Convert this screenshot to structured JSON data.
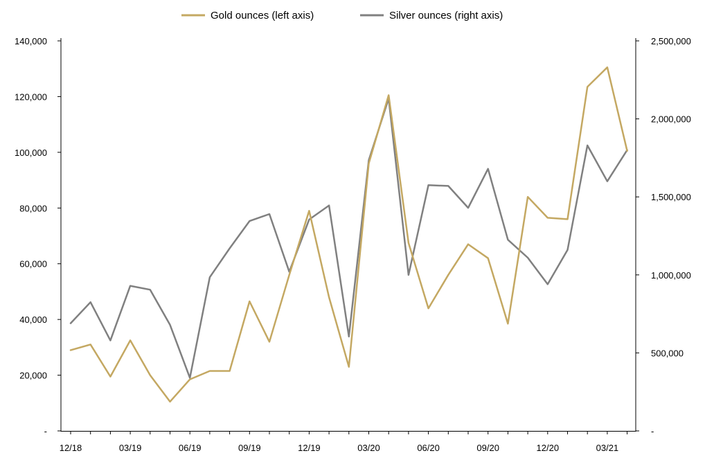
{
  "chart_data": {
    "type": "line",
    "x_tick_labels": [
      "12/18",
      "03/19",
      "06/19",
      "09/19",
      "12/19",
      "03/20",
      "06/20",
      "09/20",
      "12/20",
      "03/21"
    ],
    "x": [
      "12/18",
      "01/19",
      "02/19",
      "03/19",
      "04/19",
      "05/19",
      "06/19",
      "07/19",
      "08/19",
      "09/19",
      "10/19",
      "11/19",
      "12/19",
      "01/20",
      "02/20",
      "03/20",
      "04/20",
      "05/20",
      "06/20",
      "07/20",
      "08/20",
      "09/20",
      "10/20",
      "11/20",
      "12/20",
      "01/21",
      "02/21",
      "03/21",
      "04/21"
    ],
    "series": [
      {
        "name": "Gold ounces (left axis)",
        "axis": "left",
        "color": "#c4a862",
        "values": [
          29000,
          31000,
          19500,
          32500,
          20000,
          10500,
          18500,
          21500,
          21500,
          46500,
          32000,
          56000,
          79000,
          48000,
          23000,
          96000,
          120500,
          67500,
          44000,
          56000,
          67000,
          62000,
          38500,
          84000,
          76500,
          76000,
          123500,
          130500,
          100500
        ]
      },
      {
        "name": "Silver ounces (right axis)",
        "axis": "right",
        "color": "#808080",
        "values": [
          690000,
          825000,
          580000,
          930000,
          905000,
          680000,
          340000,
          985000,
          1170000,
          1345000,
          1390000,
          1020000,
          1355000,
          1445000,
          605000,
          1735000,
          2130000,
          1000000,
          1575000,
          1570000,
          1430000,
          1680000,
          1225000,
          1110000,
          940000,
          1160000,
          1830000,
          1600000,
          1800000
        ]
      }
    ],
    "y_left": {
      "ticks": [
        "-",
        "20,000",
        "40,000",
        "60,000",
        "80,000",
        "100,000",
        "120,000",
        "140,000"
      ],
      "ylim": [
        0,
        140000
      ]
    },
    "y_right": {
      "ticks": [
        "-",
        "500,000",
        "1,000,000",
        "1,500,000",
        "2,000,000",
        "2,500,000"
      ],
      "ylim": [
        0,
        2500000
      ]
    },
    "title": "",
    "grid": false,
    "legend": "top-center"
  }
}
